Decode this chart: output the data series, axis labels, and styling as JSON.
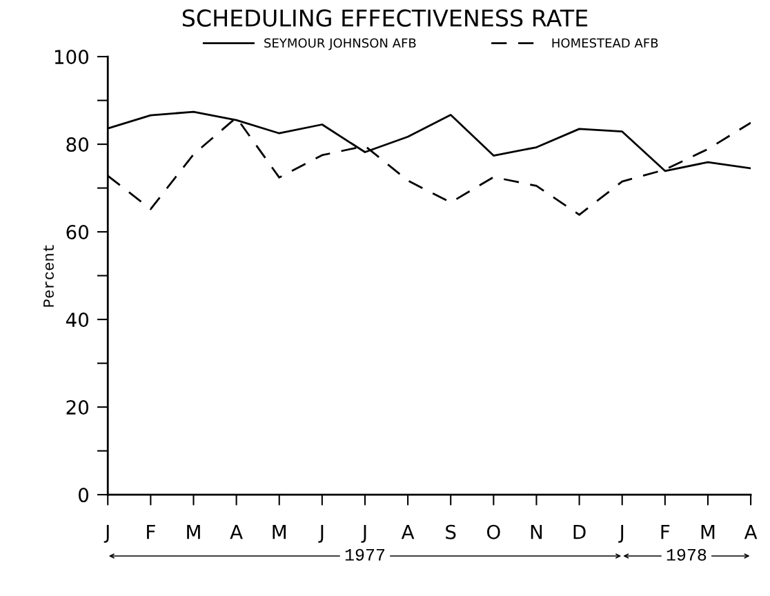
{
  "chart_data": {
    "type": "line",
    "title": "SCHEDULING EFFECTIVENESS RATE",
    "ylabel": "Percent",
    "categories": [
      "J",
      "F",
      "M",
      "A",
      "M",
      "J",
      "J",
      "A",
      "S",
      "O",
      "N",
      "D",
      "J",
      "F",
      "M",
      "A"
    ],
    "series": [
      {
        "name": "SEYMOUR JOHNSON AFB",
        "color": "#000000",
        "line_style": "solid",
        "values": [
          83.6,
          86.6,
          87.4,
          85.5,
          82.5,
          84.5,
          78.2,
          81.7,
          86.7,
          77.4,
          79.3,
          83.5,
          82.9,
          73.9,
          75.9,
          74.5
        ]
      },
      {
        "name": "HOMESTEAD AFB",
        "color": "#000000",
        "line_style": "dashed",
        "values": [
          72.8,
          65.2,
          77.7,
          86.1,
          72.4,
          77.5,
          79.6,
          71.7,
          66.7,
          72.5,
          70.5,
          63.9,
          71.5,
          74.2,
          78.9,
          84.9
        ]
      }
    ],
    "ylim": [
      0,
      100
    ],
    "yticks": [
      0,
      {
        "value": 10,
        "label": null
      },
      20,
      {
        "value": 30,
        "label": null
      },
      40,
      {
        "value": 50,
        "label": null
      },
      60,
      {
        "value": 70,
        "label": null
      },
      80,
      {
        "value": 90,
        "label": null
      },
      100
    ],
    "grid": false,
    "legend": "top",
    "marker": "none",
    "annotations": [
      "1977",
      "1978"
    ]
  }
}
